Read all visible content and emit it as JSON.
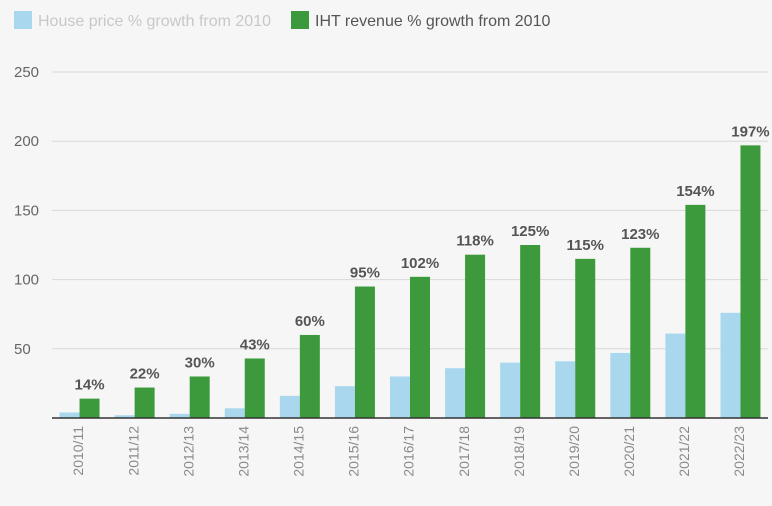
{
  "chart_data": {
    "type": "bar",
    "title": "",
    "xlabel": "",
    "ylabel": "",
    "ylim": [
      0,
      250
    ],
    "yticks": [
      50,
      100,
      150,
      200,
      250
    ],
    "grid": true,
    "legend_position": "top-left",
    "categories": [
      "2010/11",
      "2011/12",
      "2012/13",
      "2013/14",
      "2014/15",
      "2015/16",
      "2016/17",
      "2017/18",
      "2018/19",
      "2019/20",
      "2020/21",
      "2021/22",
      "2022/23"
    ],
    "series": [
      {
        "name": "House price % growth from 2010",
        "color": "#a9d8ee",
        "values": [
          4,
          2,
          3,
          7,
          16,
          23,
          30,
          36,
          40,
          41,
          47,
          61,
          76
        ]
      },
      {
        "name": "IHT revenue % growth from 2010",
        "color": "#3c9a3c",
        "values": [
          14,
          22,
          30,
          43,
          60,
          95,
          102,
          118,
          125,
          115,
          123,
          154,
          197
        ],
        "data_labels": [
          "14%",
          "22%",
          "30%",
          "43%",
          "60%",
          "95%",
          "102%",
          "118%",
          "125%",
          "115%",
          "123%",
          "154%",
          "197%"
        ]
      }
    ]
  }
}
